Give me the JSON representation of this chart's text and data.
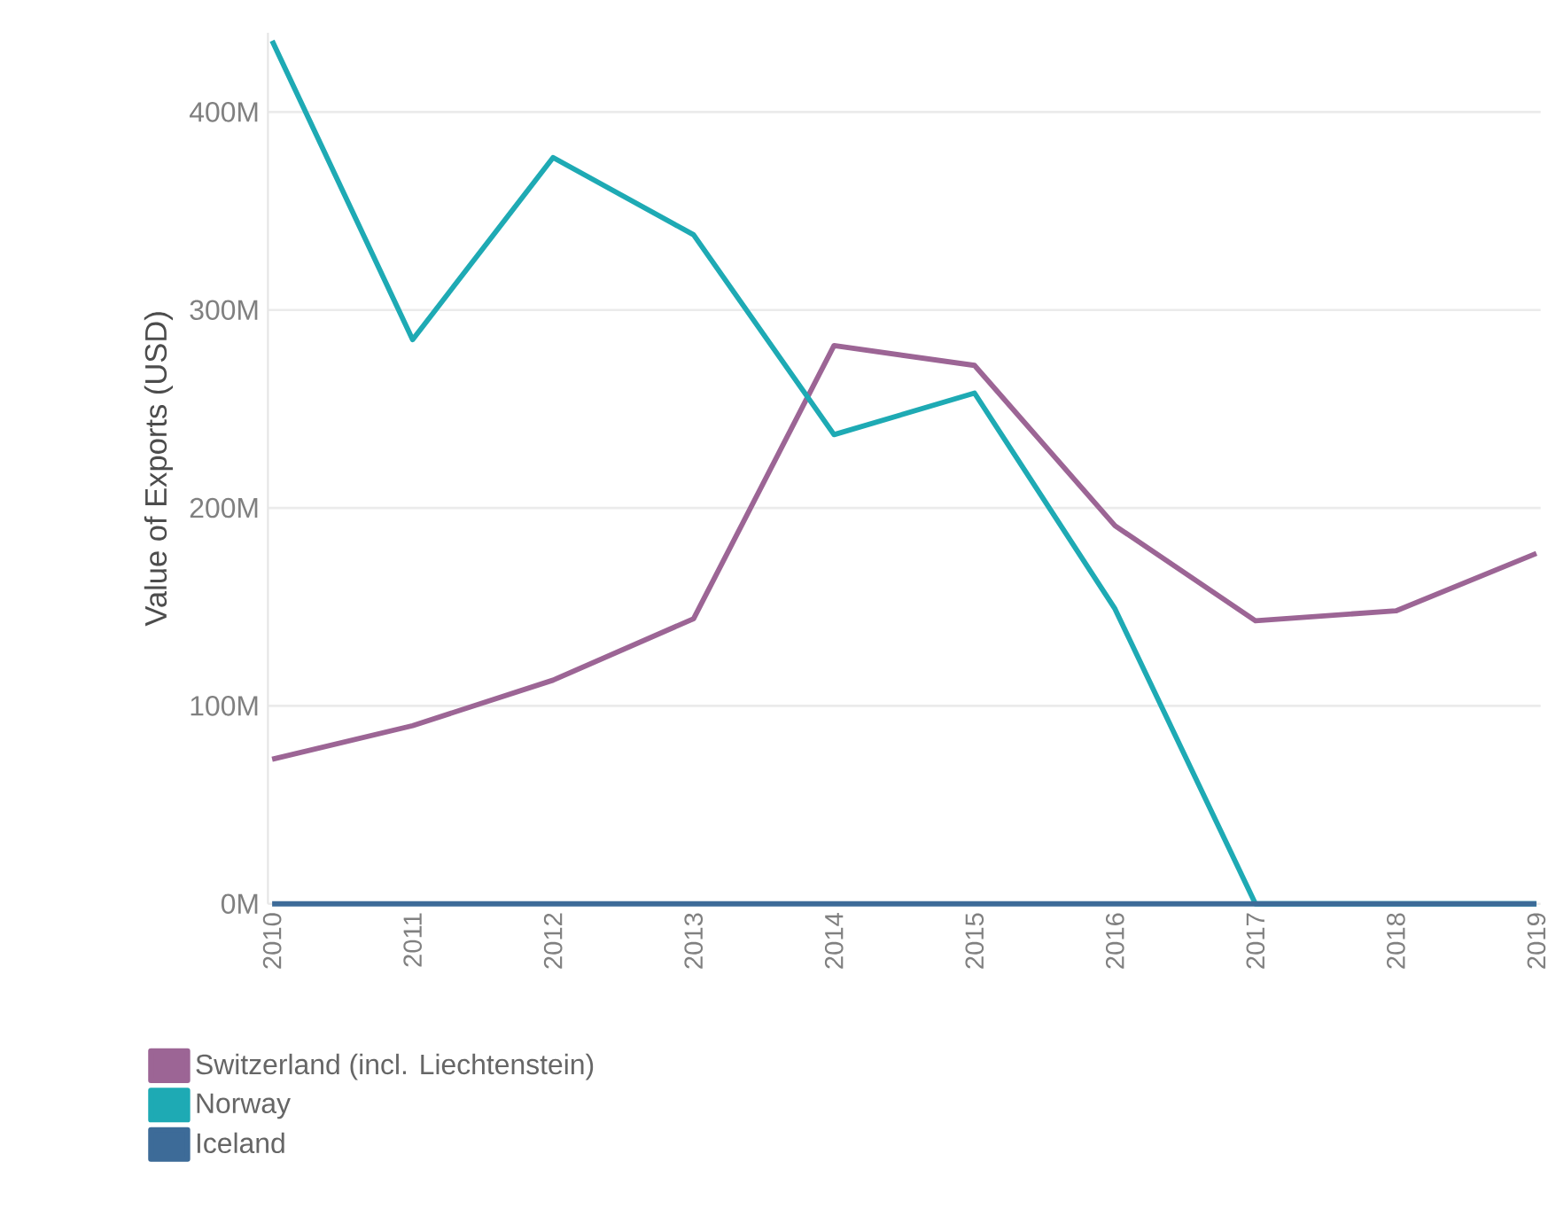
{
  "chart_data": {
    "type": "line",
    "ylabel": "Value of Exports (USD)",
    "categories": [
      "2010",
      "2011",
      "2012",
      "2013",
      "2014",
      "2015",
      "2016",
      "2017",
      "2018",
      "2019"
    ],
    "series": [
      {
        "name": "Switzerland (incl. Liechtenstein)",
        "color": "#9c6595",
        "values": [
          73,
          90,
          113,
          144,
          282,
          272,
          191,
          143,
          148,
          177
        ]
      },
      {
        "name": "Norway",
        "color": "#1eaab4",
        "values": [
          436,
          285,
          377,
          338,
          237,
          258,
          149,
          0,
          0,
          0
        ]
      },
      {
        "name": "Iceland",
        "color": "#3d6b98",
        "values": [
          0,
          0,
          0,
          0,
          0,
          0,
          0,
          0,
          0,
          0
        ]
      }
    ],
    "ylim": [
      0,
      440
    ],
    "yticks": [
      {
        "value": 0,
        "label": "0M"
      },
      {
        "value": 100,
        "label": "100M"
      },
      {
        "value": 200,
        "label": "200M"
      },
      {
        "value": 300,
        "label": "300M"
      },
      {
        "value": 400,
        "label": "400M"
      }
    ],
    "grid": "y",
    "legend": "bottom left",
    "marker": "none",
    "line_style": "solid"
  }
}
